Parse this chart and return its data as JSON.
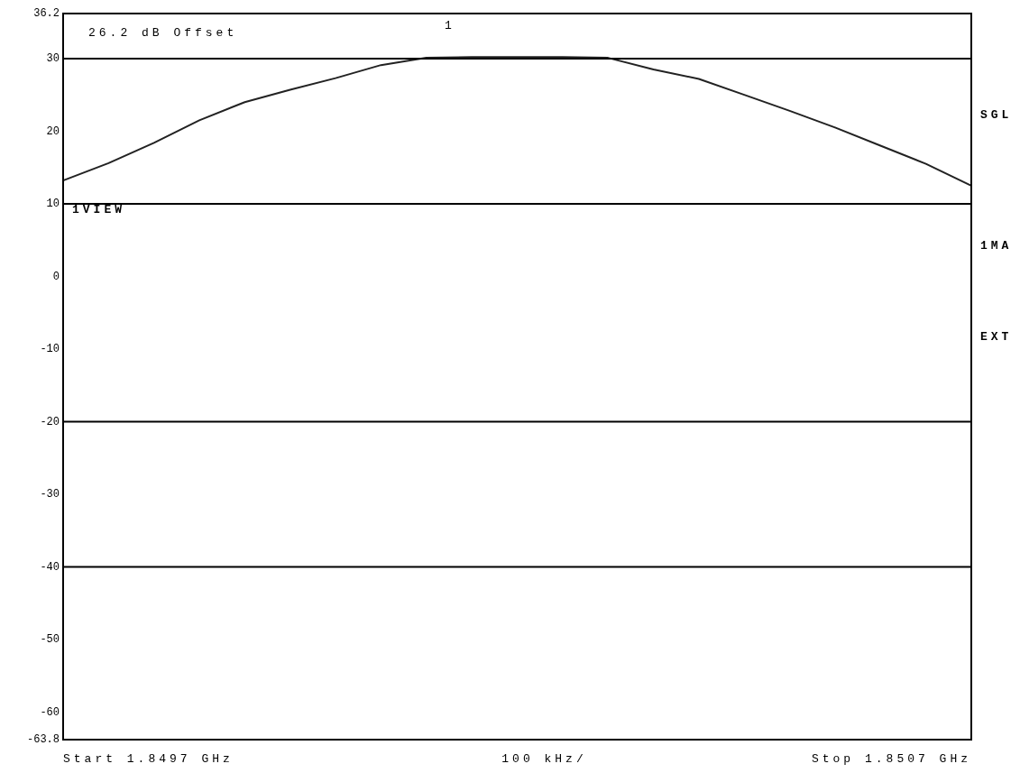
{
  "chart_data": {
    "type": "line",
    "categories": [
      null,
      null,
      null,
      null,
      null,
      null,
      null,
      null,
      null,
      null,
      null,
      null,
      null,
      null,
      null,
      null,
      null,
      null,
      null,
      null,
      null
    ],
    "series": [
      {
        "color": "#222222",
        "values": [
          13.2,
          15.6,
          18.4,
          21.5,
          24,
          25.7,
          27.3,
          29.1,
          30.1,
          30.2,
          30.2,
          30.2,
          30.1,
          28.5,
          27.2,
          25,
          22.8,
          20.5,
          18,
          15.5,
          12.5
        ]
      }
    ],
    "ylim": [
      -63.8,
      36.2
    ],
    "yticks": [
      -63.8,
      -60,
      -50,
      -40,
      -30,
      -20,
      -10,
      0,
      10,
      20,
      30,
      36.2
    ],
    "tick_labels": "y",
    "marker": "none",
    "ref_lines": [
      {
        "axis": "y",
        "value": 30,
        "color": "#000000"
      },
      {
        "axis": "y",
        "value": 10,
        "color": "#000000"
      },
      {
        "axis": "y",
        "value": -20,
        "color": "#000000"
      },
      {
        "axis": "y",
        "value": -40,
        "color": "#000000"
      }
    ],
    "annotations": [
      "26.2 dB Offset",
      "1VIEW",
      "SGL",
      "1MA",
      "EXT",
      "Start 1.8497 GHz",
      "100 kHz/",
      "Stop 1.8507 GHz",
      "1"
    ]
  }
}
